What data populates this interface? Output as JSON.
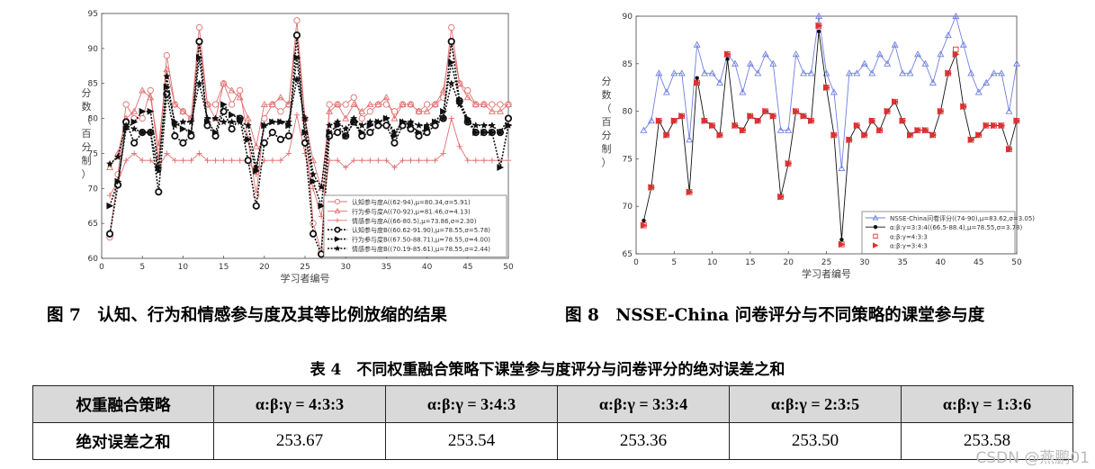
{
  "chart_data": [
    {
      "type": "line",
      "ylabel": "分数（百分制）",
      "xlabel": "学习者编号",
      "xlim": [
        0,
        50
      ],
      "ylim": [
        60,
        95
      ],
      "xticks": [
        0,
        5,
        10,
        15,
        20,
        25,
        30,
        35,
        40,
        45,
        50
      ],
      "yticks": [
        60,
        65,
        70,
        75,
        80,
        85,
        90,
        95
      ],
      "legend_position": "bottom-right",
      "series": [
        {
          "name": "认知参与度A((62-94),μ=80.34,σ=5.91)",
          "color": "#e07070",
          "style": "solid",
          "marker": "circle-open",
          "values": [
            63,
            72,
            82,
            80,
            80,
            84,
            74,
            89,
            82,
            81,
            80,
            93,
            82,
            82,
            85,
            82,
            84,
            77,
            69,
            80,
            82,
            81,
            82,
            94,
            80,
            65,
            61,
            82,
            82,
            82,
            83,
            80,
            81,
            82,
            82,
            81,
            82,
            82,
            81,
            82,
            82,
            83,
            93,
            85,
            84,
            82,
            82,
            82,
            82,
            82
          ]
        },
        {
          "name": "行为参与度A((70-92),μ=81.46,σ=4.13)",
          "color": "#e07070",
          "style": "solid",
          "marker": "triangle-open",
          "values": [
            73,
            75,
            80,
            81,
            84,
            83,
            76,
            87,
            82,
            81,
            80,
            91,
            82,
            80,
            85,
            84,
            83,
            80,
            76,
            82,
            82,
            83,
            82,
            92,
            80,
            74,
            70,
            81,
            82,
            80,
            82,
            81,
            82,
            82,
            83,
            80,
            82,
            82,
            81,
            81,
            82,
            84,
            91,
            85,
            83,
            82,
            82,
            81,
            81,
            82
          ]
        },
        {
          "name": "情感参与度A((66-80.5),μ=73.86,σ=2.30)",
          "color": "#e07070",
          "style": "solid",
          "marker": "plus",
          "values": [
            69,
            71,
            74,
            75,
            74,
            74,
            73,
            75,
            74,
            74,
            74,
            75,
            74,
            74,
            74,
            74,
            74,
            74,
            72,
            74,
            74,
            74,
            75,
            80.5,
            75,
            70,
            66,
            74,
            74,
            73,
            74,
            74,
            74,
            74,
            74,
            73,
            74,
            74,
            74,
            74,
            74,
            75,
            80,
            76,
            74,
            74,
            74,
            74,
            74,
            74
          ]
        },
        {
          "name": "认知参与度B((60.62-91.90),μ=78.55,σ=5.78)",
          "color": "#111111",
          "style": "dotted",
          "marker": "circle-bold",
          "values": [
            63.5,
            70.5,
            79.5,
            76.5,
            78,
            78,
            69.5,
            83.5,
            77.5,
            76.5,
            77.5,
            91,
            79,
            77.5,
            81,
            78.5,
            80,
            74,
            67.5,
            76.5,
            78,
            77,
            77.5,
            91.9,
            76.5,
            63.5,
            60.6,
            77.5,
            78,
            77.5,
            79.5,
            77.5,
            78,
            79,
            79,
            76.5,
            79,
            78.5,
            77.5,
            78,
            79,
            80,
            91,
            82.5,
            79.5,
            78,
            78,
            78,
            78,
            80
          ]
        },
        {
          "name": "行为参与度B((67.50-88.71),μ=78.55,σ=4.00)",
          "color": "#111111",
          "style": "dotted",
          "marker": "triangle-right",
          "values": [
            67.5,
            71,
            78.5,
            79.5,
            81,
            81,
            73,
            84.5,
            79.5,
            78.5,
            78,
            88.7,
            79.5,
            78,
            82,
            80.5,
            80,
            77,
            72.5,
            79,
            79.5,
            79.5,
            79,
            88.7,
            78,
            71,
            67.5,
            78,
            79,
            77.5,
            79.5,
            78,
            79,
            79.5,
            80,
            77.5,
            79.5,
            79,
            78,
            78.5,
            79.5,
            81,
            88,
            82.5,
            80,
            78,
            78,
            78,
            73,
            79
          ]
        },
        {
          "name": "情感参与度B((70.19-85.61),μ=78.55,σ=2.44)",
          "color": "#111111",
          "style": "dotted",
          "marker": "star",
          "values": [
            73.5,
            74.5,
            79,
            78.5,
            78,
            78,
            72.5,
            86,
            79,
            79.5,
            79.5,
            85,
            80,
            80,
            79.5,
            79.5,
            79.5,
            79,
            73,
            79,
            79.5,
            79.5,
            79.5,
            85.6,
            80,
            72,
            70.2,
            79,
            79.5,
            78.5,
            80,
            79,
            79.5,
            79.5,
            80,
            78,
            79.5,
            79.5,
            79,
            79,
            79.5,
            80,
            85,
            82,
            79.5,
            79,
            79,
            79,
            78,
            79
          ]
        }
      ]
    },
    {
      "type": "line",
      "ylabel": "分数（百分制）",
      "xlabel": "学习者编号",
      "xlim": [
        0,
        50
      ],
      "ylim": [
        65,
        90
      ],
      "xticks": [
        0,
        5,
        10,
        15,
        20,
        25,
        30,
        35,
        40,
        45,
        50
      ],
      "yticks": [
        65,
        70,
        75,
        80,
        85,
        90
      ],
      "legend_position": "bottom-left",
      "series": [
        {
          "name": "NSSE-China问卷评分((74-90),μ=83.62,σ=3.05)",
          "color": "#6f7fe0",
          "style": "solid",
          "marker": "triangle-open",
          "values": [
            78,
            79,
            84,
            82,
            84,
            84,
            77,
            87,
            84,
            84,
            83,
            86,
            85,
            82,
            85,
            84,
            86,
            85,
            78,
            78,
            86,
            84,
            84,
            90,
            84,
            82,
            74,
            84,
            84,
            85,
            84,
            86,
            85,
            87,
            84,
            84,
            86,
            85,
            83,
            86,
            88,
            90,
            87,
            84,
            82,
            83,
            84,
            84,
            80,
            85
          ]
        },
        {
          "name": "α:β:γ=3:3:4((66.5-88.4),μ=78.55,σ=3.78)",
          "color": "#111111",
          "style": "solid",
          "marker": "dot",
          "values": [
            68.5,
            72,
            79,
            77.5,
            79,
            79.5,
            71.5,
            83.5,
            79,
            78.5,
            77.5,
            85.5,
            78.5,
            78,
            79.5,
            79,
            80,
            79.5,
            71,
            74.5,
            80,
            79.5,
            79,
            88.4,
            82.5,
            77.5,
            66.5,
            77,
            78.5,
            77.5,
            79,
            78,
            80,
            81,
            79,
            77.5,
            78,
            78,
            77.5,
            80,
            84,
            86,
            80.5,
            77,
            77.5,
            78.5,
            78.5,
            78.5,
            76,
            79
          ]
        },
        {
          "name": "α:β:γ=4:3:3",
          "color": "#e03030",
          "style": "none",
          "marker": "square-open",
          "values": [
            68,
            72,
            79,
            77.5,
            79,
            79.5,
            71.5,
            83,
            79,
            78.5,
            77.5,
            86,
            78.5,
            78,
            79.5,
            79,
            80,
            79.5,
            71,
            74.5,
            80,
            79.5,
            79,
            89,
            82.5,
            77.5,
            66,
            77,
            78.5,
            77.5,
            79,
            78,
            80,
            81,
            79,
            77.5,
            78,
            78,
            77.5,
            80,
            84,
            86.5,
            80.5,
            77,
            77.5,
            78.5,
            78.5,
            78.5,
            76,
            79
          ]
        },
        {
          "name": "α:β:γ=3:4:3",
          "color": "#e03030",
          "style": "none",
          "marker": "triangle-right",
          "values": [
            68,
            72,
            79,
            77.5,
            79,
            79.5,
            71.5,
            83,
            79,
            78.5,
            77.5,
            86,
            78.5,
            78,
            79.5,
            79,
            80,
            79.5,
            71,
            74.5,
            80,
            79.5,
            79,
            89,
            82.5,
            77.5,
            66,
            77,
            78.5,
            77.5,
            79,
            78,
            80,
            81,
            79,
            77.5,
            78,
            78,
            77.5,
            80,
            84,
            86,
            80.5,
            77,
            77.5,
            78.5,
            78.5,
            78.5,
            76,
            79
          ]
        }
      ]
    }
  ],
  "captions": {
    "fig7": "图 7　认知、行为和情感参与度及其等比例放缩的结果",
    "fig8": "图 8　NSSE-China 问卷评分与不同策略的课堂参与度"
  },
  "table": {
    "title": "表 4　不同权重融合策略下课堂参与度评分与问卷评分的绝对误差之和",
    "corner_header": "权重融合策略",
    "row_header": "绝对误差之和",
    "columns": [
      "α:β:γ = 4:3:3",
      "α:β:γ = 3:4:3",
      "α:β:γ = 3:3:4",
      "α:β:γ = 2:3:5",
      "α:β:γ = 1:3:6"
    ],
    "values": [
      "253.67",
      "253.54",
      "253.36",
      "253.50",
      "253.58"
    ]
  },
  "watermark": "CSDN @燕鹏01"
}
